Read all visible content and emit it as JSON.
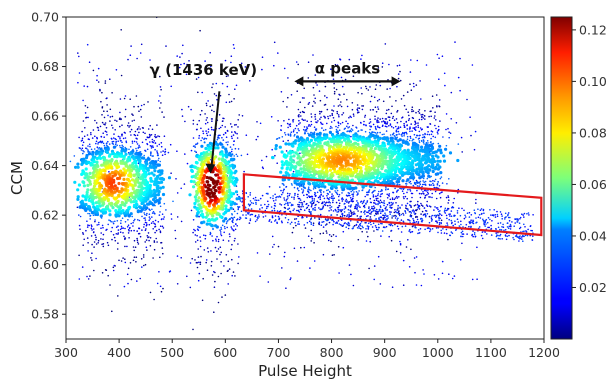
{
  "chart_data": {
    "type": "scatter",
    "style": "density-colored scatter (heatmap colormap jet)",
    "xlabel": "Pulse Height",
    "ylabel": "CCM",
    "xlim": [
      300,
      1200
    ],
    "ylim": [
      0.57,
      0.7
    ],
    "x_ticks": [
      300,
      400,
      500,
      600,
      700,
      800,
      900,
      1000,
      1100,
      1200
    ],
    "y_ticks": [
      0.58,
      0.6,
      0.62,
      0.64,
      0.66,
      0.68,
      0.7
    ],
    "grid": false,
    "colorbar": {
      "colormap": "jet",
      "range": [
        0.0,
        0.125
      ],
      "ticks": [
        0.02,
        0.04,
        0.06,
        0.08,
        0.1,
        0.12
      ],
      "position": "right"
    },
    "clusters": [
      {
        "x_range": [
          330,
          480
        ],
        "y_center": 0.633,
        "y_spread": 0.018,
        "peak_density": 0.075,
        "peak_at": [
          390,
          0.633
        ]
      },
      {
        "x_range": [
          540,
          620
        ],
        "y_center": 0.633,
        "y_spread": 0.02,
        "peak_density": 0.12,
        "peak_at": [
          575,
          0.632
        ]
      },
      {
        "x_range": [
          720,
          1000
        ],
        "y_center": 0.642,
        "y_spread": 0.015,
        "peak_density": 0.065,
        "peak_at": [
          820,
          0.642
        ]
      }
    ],
    "annotations": [
      {
        "text": "γ (1436 keV)",
        "points_to": [
          570,
          0.636
        ]
      },
      {
        "text": "α peaks",
        "spans_x": [
          730,
          930
        ],
        "y": 0.674
      }
    ],
    "highlight_region": {
      "shape": "parallelogram",
      "color": "#e41a1c",
      "corners": [
        [
          635,
          0.6365
        ],
        [
          1195,
          0.627
        ],
        [
          1195,
          0.612
        ],
        [
          635,
          0.622
        ]
      ]
    }
  }
}
